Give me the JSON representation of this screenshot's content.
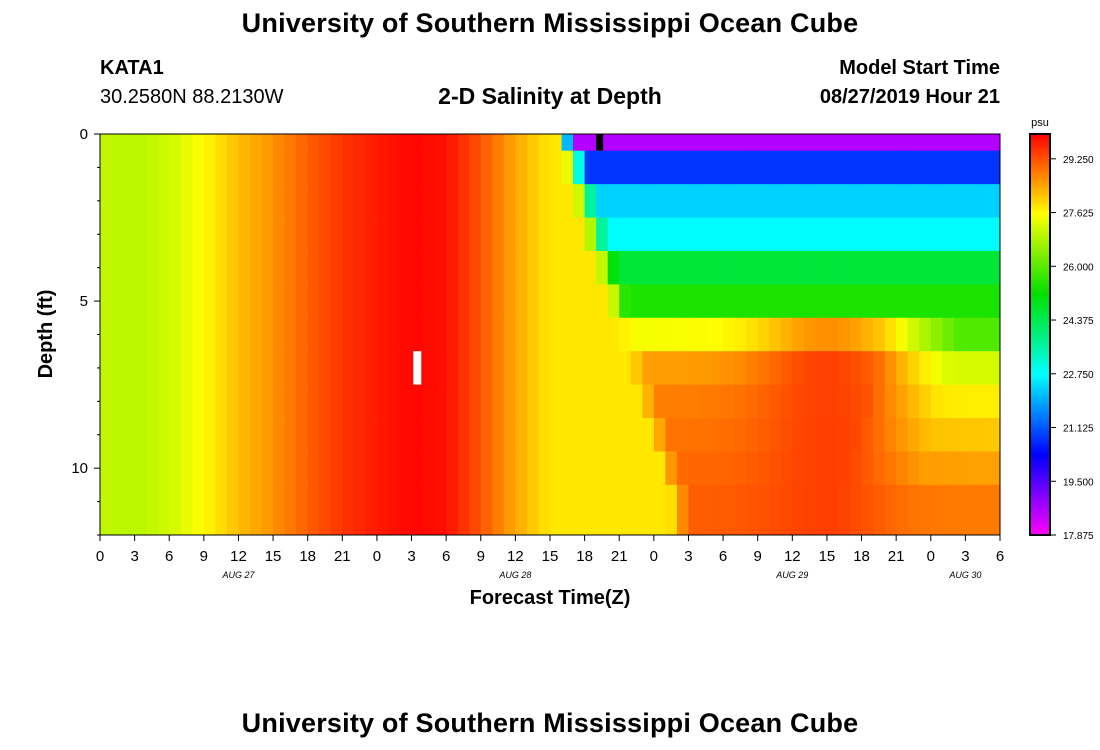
{
  "header": {
    "title_top": "University of Southern Mississippi Ocean Cube",
    "title_bottom": "University of Southern Mississippi Ocean Cube",
    "station": "KATA1",
    "coords": "30.2580N 88.2130W",
    "subtitle": "2-D Salinity at Depth",
    "model_start_label": "Model Start Time",
    "model_start_value": "08/27/2019 Hour 21"
  },
  "chart_data": {
    "type": "heatmap",
    "title": "2-D Salinity at Depth",
    "xlabel": "Forecast Time(Z)",
    "ylabel": "Depth (ft)",
    "x_range_hours": [
      0,
      78
    ],
    "ylim": [
      0,
      12
    ],
    "x_tick_labels": [
      "0",
      "3",
      "6",
      "9",
      "12",
      "15",
      "18",
      "21",
      "0",
      "3",
      "6",
      "9",
      "12",
      "15",
      "18",
      "21",
      "0",
      "3",
      "6",
      "9",
      "12",
      "15",
      "18",
      "21",
      "0",
      "3",
      "6"
    ],
    "y_ticks": [
      0,
      5,
      10
    ],
    "day_labels": [
      {
        "text": "AUG 27",
        "hour": 12
      },
      {
        "text": "AUG 28",
        "hour": 36
      },
      {
        "text": "AUG 29",
        "hour": 60
      },
      {
        "text": "AUG 30",
        "hour": 75
      }
    ],
    "depth_layers_ft": [
      0.25,
      1.0,
      2.0,
      3.0,
      4.0,
      5.0,
      6.0,
      7.0,
      8.0,
      9.0,
      10.0,
      11.0
    ],
    "salinity_psu": {
      "early_profile": [
        {
          "hour": 0,
          "value": 27.0
        },
        {
          "hour": 3,
          "value": 26.9
        },
        {
          "hour": 6,
          "value": 27.1
        },
        {
          "hour": 9,
          "value": 27.6
        },
        {
          "hour": 12,
          "value": 28.2
        },
        {
          "hour": 15,
          "value": 28.6
        },
        {
          "hour": 18,
          "value": 29.1
        },
        {
          "hour": 21,
          "value": 29.5
        },
        {
          "hour": 24,
          "value": 29.75
        },
        {
          "hour": 27,
          "value": 29.95
        },
        {
          "hour": 30,
          "value": 29.85
        },
        {
          "hour": 33,
          "value": 29.2
        },
        {
          "hour": 36,
          "value": 28.4
        },
        {
          "hour": 39,
          "value": 27.8
        }
      ],
      "late_by_layer": [
        {
          "depth": 0.25,
          "value": 18.6
        },
        {
          "depth": 1.0,
          "value": 20.8
        },
        {
          "depth": 2.0,
          "value": 22.3
        },
        {
          "depth": 3.0,
          "value": 22.7
        },
        {
          "depth": 4.0,
          "value": 24.6
        },
        {
          "depth": 5.0,
          "value": 25.4
        },
        {
          "depth": 6.0,
          "value": 27.5
        },
        {
          "depth": 7.0,
          "value": 28.5
        },
        {
          "depth": 8.0,
          "value": 28.8
        },
        {
          "depth": 9.0,
          "value": 28.9
        },
        {
          "depth": 10.0,
          "value": 29.0
        },
        {
          "depth": 11.0,
          "value": 29.1
        }
      ],
      "late_deep_maximum": {
        "hour": 63,
        "value": 29.4
      },
      "freshening_start_hour": 39.5
    },
    "markers": [
      {
        "type": "current-hour",
        "hour": 27.5,
        "depth_range": [
          6.5,
          7.5
        ],
        "color": "#ffffff"
      },
      {
        "type": "obs",
        "hour": 43.3,
        "depth_range": [
          0,
          0.5
        ],
        "color": "#000000"
      }
    ],
    "colorbar": {
      "unit": "psu",
      "min": 17.875,
      "max": 30.0,
      "tick_labels": [
        "29.250",
        "27.625",
        "26.000",
        "24.375",
        "22.750",
        "21.125",
        "19.500",
        "17.875"
      ],
      "ticks": [
        29.25,
        27.625,
        26.0,
        24.375,
        22.75,
        21.125,
        19.5,
        17.875
      ]
    }
  }
}
